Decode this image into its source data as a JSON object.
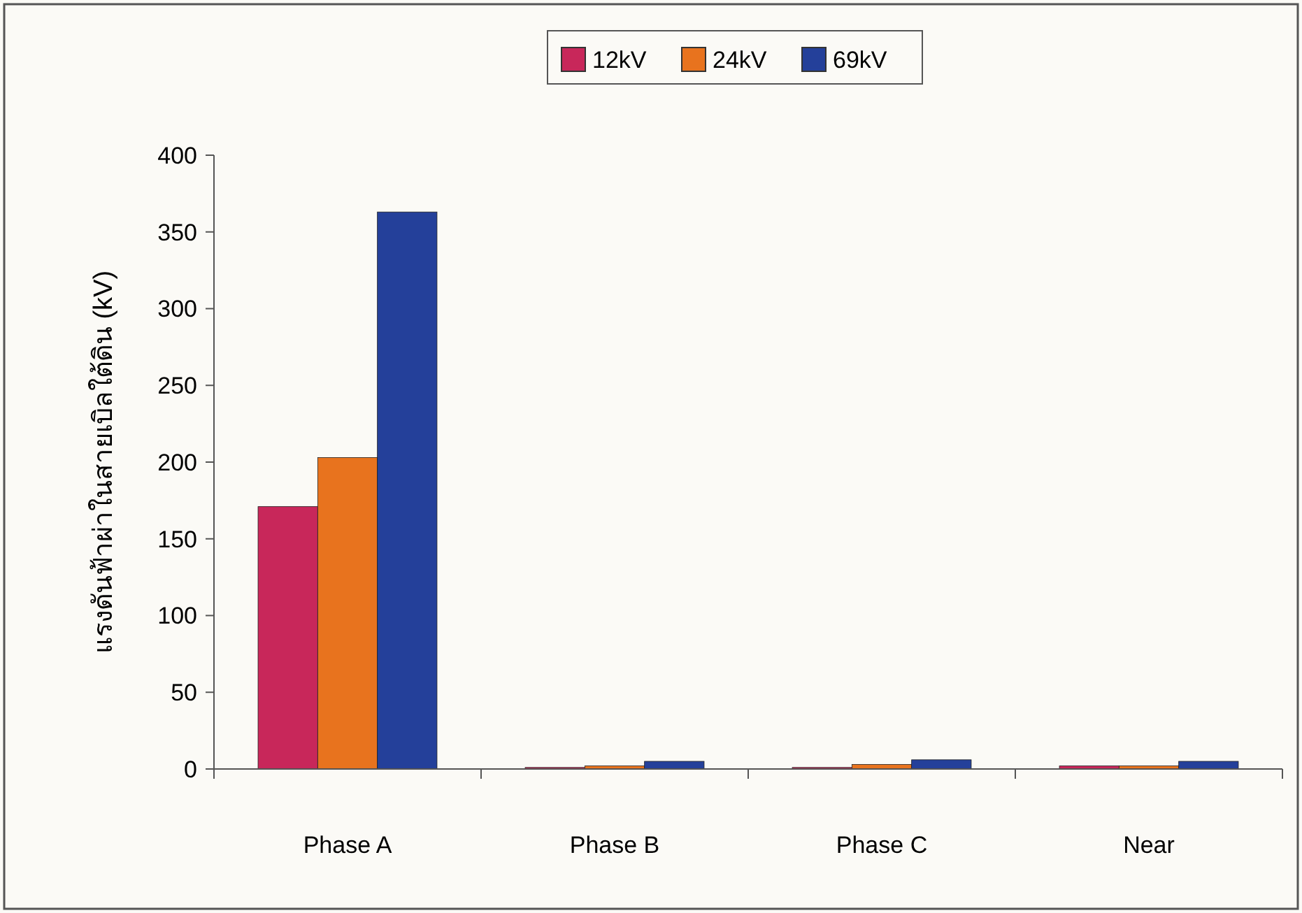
{
  "chart_data": {
    "type": "bar",
    "ylabel": "แรงดันฟ้าผ่าในสายเบิลใต้ดิน (kV)",
    "categories": [
      "Phase A",
      "Phase B",
      "Phase C",
      "Near"
    ],
    "series": [
      {
        "name": "12kV",
        "color": "#c8275a",
        "values": [
          171,
          1,
          1,
          2
        ]
      },
      {
        "name": "24kV",
        "color": "#e8731e",
        "values": [
          203,
          2,
          3,
          2
        ]
      },
      {
        "name": "69kV",
        "color": "#24409a",
        "values": [
          363,
          5,
          6,
          5
        ]
      }
    ],
    "ylim": [
      0,
      400
    ],
    "yticks": [
      0,
      50,
      100,
      150,
      200,
      250,
      300,
      350,
      400
    ],
    "grid": false,
    "legend": "top"
  }
}
